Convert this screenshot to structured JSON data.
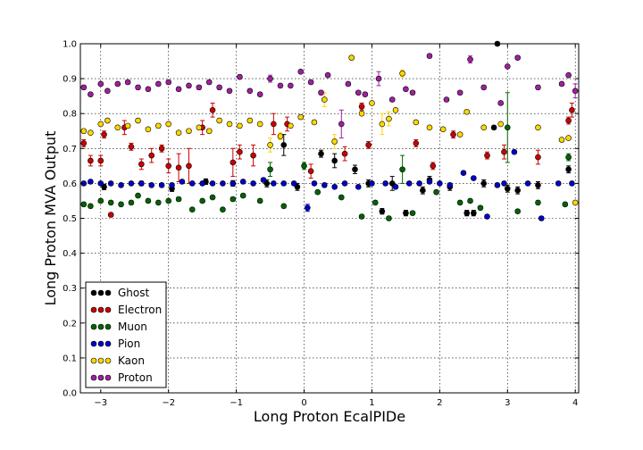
{
  "chart_data": {
    "type": "scatter",
    "title": "",
    "xlabel": "Long Proton EcalPIDe",
    "ylabel": "Long Proton MVA Output",
    "xlim": [
      -3.3,
      4.05
    ],
    "ylim": [
      0.0,
      1.0
    ],
    "xticks": [
      -3,
      -2,
      -1,
      0,
      1,
      2,
      3,
      4
    ],
    "xtick_labels": [
      "−3",
      "−2",
      "−1",
      "0",
      "1",
      "2",
      "3",
      "4"
    ],
    "yticks": [
      0.0,
      0.1,
      0.2,
      0.3,
      0.4,
      0.5,
      0.6,
      0.7,
      0.8,
      0.9,
      1.0
    ],
    "ytick_labels": [
      "0.0",
      "0.1",
      "0.2",
      "0.3",
      "0.4",
      "0.5",
      "0.6",
      "0.7",
      "0.8",
      "0.9",
      "1.0"
    ],
    "grid": true,
    "legend_position": "bottom-left",
    "colors": {
      "Ghost": "#000000",
      "Electron": "#cc0000",
      "Muon": "#006400",
      "Pion": "#0000cc",
      "Kaon": "#ffd700",
      "Proton": "#a020a0"
    },
    "series": [
      {
        "name": "Ghost",
        "points": [
          [
            -2.95,
            0.59,
            0.008
          ],
          [
            -2.4,
            0.6,
            0.006
          ],
          [
            -1.95,
            0.585,
            0.008
          ],
          [
            -1.45,
            0.605,
            0.008
          ],
          [
            -1.05,
            0.6,
            0.008
          ],
          [
            -0.55,
            0.6,
            0.01
          ],
          [
            -0.3,
            0.71,
            0.03
          ],
          [
            -0.1,
            0.59,
            0.01
          ],
          [
            0.25,
            0.685,
            0.01
          ],
          [
            0.45,
            0.665,
            0.02
          ],
          [
            0.75,
            0.64,
            0.012
          ],
          [
            0.95,
            0.6,
            0.01
          ],
          [
            1.15,
            0.52,
            0.008
          ],
          [
            1.3,
            0.6,
            0.02
          ],
          [
            1.5,
            0.515,
            0.008
          ],
          [
            1.75,
            0.58,
            0.01
          ],
          [
            1.85,
            0.61,
            0.01
          ],
          [
            2.15,
            0.59,
            0.01
          ],
          [
            2.4,
            0.515,
            0.008
          ],
          [
            2.5,
            0.515,
            0.008
          ],
          [
            2.65,
            0.6,
            0.01
          ],
          [
            2.8,
            0.76,
            0.005
          ],
          [
            3.0,
            0.585,
            0.01
          ],
          [
            3.15,
            0.58,
            0.01
          ],
          [
            3.45,
            0.595,
            0.01
          ],
          [
            3.9,
            0.64,
            0.01
          ],
          [
            2.85,
            1.0,
            0.0
          ]
        ]
      },
      {
        "name": "Electron",
        "points": [
          [
            -3.25,
            0.715,
            0.01
          ],
          [
            -3.15,
            0.665,
            0.015
          ],
          [
            -3.0,
            0.665,
            0.015
          ],
          [
            -2.95,
            0.74,
            0.01
          ],
          [
            -2.85,
            0.51,
            0.005
          ],
          [
            -2.65,
            0.76,
            0.02
          ],
          [
            -2.55,
            0.705,
            0.01
          ],
          [
            -2.4,
            0.655,
            0.015
          ],
          [
            -2.25,
            0.68,
            0.02
          ],
          [
            -2.1,
            0.7,
            0.01
          ],
          [
            -2.0,
            0.65,
            0.02
          ],
          [
            -1.85,
            0.645,
            0.04
          ],
          [
            -1.7,
            0.65,
            0.05
          ],
          [
            -1.5,
            0.76,
            0.02
          ],
          [
            -1.35,
            0.81,
            0.02
          ],
          [
            -1.05,
            0.66,
            0.04
          ],
          [
            -0.95,
            0.69,
            0.02
          ],
          [
            -0.75,
            0.68,
            0.03
          ],
          [
            -0.45,
            0.77,
            0.03
          ],
          [
            -0.25,
            0.77,
            0.02
          ],
          [
            0.1,
            0.635,
            0.02
          ],
          [
            0.6,
            0.685,
            0.02
          ],
          [
            0.85,
            0.82,
            0.01
          ],
          [
            0.95,
            0.71,
            0.01
          ],
          [
            1.65,
            0.715,
            0.01
          ],
          [
            1.9,
            0.65,
            0.01
          ],
          [
            2.2,
            0.74,
            0.01
          ],
          [
            2.7,
            0.68,
            0.01
          ],
          [
            2.95,
            0.69,
            0.02
          ],
          [
            3.45,
            0.675,
            0.02
          ],
          [
            3.9,
            0.78,
            0.01
          ],
          [
            3.95,
            0.81,
            0.02
          ]
        ]
      },
      {
        "name": "Muon",
        "points": [
          [
            -3.25,
            0.54,
            0.005
          ],
          [
            -3.15,
            0.535,
            0.005
          ],
          [
            -3.0,
            0.55,
            0.005
          ],
          [
            -2.85,
            0.545,
            0.005
          ],
          [
            -2.7,
            0.54,
            0.005
          ],
          [
            -2.55,
            0.545,
            0.005
          ],
          [
            -2.45,
            0.565,
            0.005
          ],
          [
            -2.3,
            0.55,
            0.005
          ],
          [
            -2.15,
            0.545,
            0.005
          ],
          [
            -2.0,
            0.55,
            0.005
          ],
          [
            -1.85,
            0.555,
            0.005
          ],
          [
            -1.65,
            0.525,
            0.005
          ],
          [
            -1.5,
            0.55,
            0.005
          ],
          [
            -1.35,
            0.56,
            0.005
          ],
          [
            -1.2,
            0.525,
            0.005
          ],
          [
            -1.05,
            0.555,
            0.005
          ],
          [
            -0.9,
            0.565,
            0.005
          ],
          [
            -0.65,
            0.55,
            0.005
          ],
          [
            -0.5,
            0.64,
            0.02
          ],
          [
            -0.3,
            0.535,
            0.005
          ],
          [
            0.0,
            0.65,
            0.01
          ],
          [
            0.2,
            0.575,
            0.005
          ],
          [
            0.55,
            0.56,
            0.005
          ],
          [
            0.85,
            0.505,
            0.005
          ],
          [
            1.05,
            0.545,
            0.005
          ],
          [
            1.25,
            0.5,
            0.005
          ],
          [
            1.45,
            0.64,
            0.04
          ],
          [
            1.6,
            0.515,
            0.005
          ],
          [
            1.95,
            0.575,
            0.005
          ],
          [
            2.3,
            0.545,
            0.005
          ],
          [
            2.45,
            0.55,
            0.005
          ],
          [
            2.6,
            0.53,
            0.005
          ],
          [
            3.0,
            0.76,
            0.1
          ],
          [
            3.15,
            0.52,
            0.005
          ],
          [
            3.45,
            0.545,
            0.005
          ],
          [
            3.85,
            0.54,
            0.005
          ],
          [
            3.9,
            0.675,
            0.01
          ]
        ]
      },
      {
        "name": "Pion",
        "points": [
          [
            -3.25,
            0.6,
            0.005
          ],
          [
            -3.15,
            0.605,
            0.005
          ],
          [
            -3.0,
            0.6,
            0.005
          ],
          [
            -2.85,
            0.6,
            0.005
          ],
          [
            -2.7,
            0.595,
            0.005
          ],
          [
            -2.55,
            0.6,
            0.005
          ],
          [
            -2.4,
            0.6,
            0.005
          ],
          [
            -2.25,
            0.595,
            0.005
          ],
          [
            -2.1,
            0.595,
            0.005
          ],
          [
            -1.95,
            0.595,
            0.005
          ],
          [
            -1.8,
            0.605,
            0.005
          ],
          [
            -1.65,
            0.6,
            0.005
          ],
          [
            -1.5,
            0.6,
            0.005
          ],
          [
            -1.35,
            0.6,
            0.005
          ],
          [
            -1.2,
            0.6,
            0.005
          ],
          [
            -1.05,
            0.6,
            0.005
          ],
          [
            -0.9,
            0.605,
            0.005
          ],
          [
            -0.75,
            0.6,
            0.005
          ],
          [
            -0.6,
            0.61,
            0.005
          ],
          [
            -0.45,
            0.6,
            0.005
          ],
          [
            -0.3,
            0.6,
            0.005
          ],
          [
            -0.15,
            0.6,
            0.005
          ],
          [
            0.05,
            0.53,
            0.01
          ],
          [
            0.15,
            0.6,
            0.005
          ],
          [
            0.3,
            0.595,
            0.005
          ],
          [
            0.45,
            0.59,
            0.005
          ],
          [
            0.6,
            0.6,
            0.005
          ],
          [
            0.8,
            0.59,
            0.005
          ],
          [
            1.0,
            0.6,
            0.005
          ],
          [
            1.2,
            0.6,
            0.005
          ],
          [
            1.35,
            0.59,
            0.005
          ],
          [
            1.55,
            0.6,
            0.005
          ],
          [
            1.7,
            0.6,
            0.005
          ],
          [
            1.85,
            0.605,
            0.005
          ],
          [
            2.0,
            0.6,
            0.005
          ],
          [
            2.15,
            0.595,
            0.005
          ],
          [
            2.35,
            0.63,
            0.005
          ],
          [
            2.5,
            0.615,
            0.005
          ],
          [
            2.7,
            0.505,
            0.005
          ],
          [
            2.85,
            0.595,
            0.005
          ],
          [
            2.95,
            0.6,
            0.005
          ],
          [
            3.1,
            0.69,
            0.005
          ],
          [
            3.3,
            0.6,
            0.005
          ],
          [
            3.5,
            0.5,
            0.005
          ],
          [
            3.75,
            0.6,
            0.005
          ],
          [
            3.95,
            0.6,
            0.005
          ]
        ]
      },
      {
        "name": "Kaon",
        "points": [
          [
            -3.25,
            0.75,
            0.005
          ],
          [
            -3.15,
            0.745,
            0.005
          ],
          [
            -3.0,
            0.77,
            0.005
          ],
          [
            -2.9,
            0.78,
            0.005
          ],
          [
            -2.75,
            0.76,
            0.005
          ],
          [
            -2.6,
            0.765,
            0.005
          ],
          [
            -2.45,
            0.78,
            0.005
          ],
          [
            -2.3,
            0.755,
            0.005
          ],
          [
            -2.15,
            0.765,
            0.005
          ],
          [
            -2.0,
            0.77,
            0.005
          ],
          [
            -1.85,
            0.745,
            0.005
          ],
          [
            -1.7,
            0.75,
            0.005
          ],
          [
            -1.55,
            0.76,
            0.005
          ],
          [
            -1.4,
            0.75,
            0.005
          ],
          [
            -1.25,
            0.78,
            0.005
          ],
          [
            -1.1,
            0.77,
            0.005
          ],
          [
            -0.95,
            0.765,
            0.005
          ],
          [
            -0.8,
            0.78,
            0.005
          ],
          [
            -0.65,
            0.77,
            0.005
          ],
          [
            -0.5,
            0.71,
            0.02
          ],
          [
            -0.35,
            0.735,
            0.01
          ],
          [
            -0.2,
            0.765,
            0.005
          ],
          [
            -0.05,
            0.79,
            0.005
          ],
          [
            0.15,
            0.775,
            0.005
          ],
          [
            0.3,
            0.84,
            0.02
          ],
          [
            0.45,
            0.72,
            0.02
          ],
          [
            0.7,
            0.96,
            0.005
          ],
          [
            0.85,
            0.8,
            0.005
          ],
          [
            1.0,
            0.83,
            0.005
          ],
          [
            1.15,
            0.77,
            0.03
          ],
          [
            1.25,
            0.785,
            0.02
          ],
          [
            1.35,
            0.81,
            0.005
          ],
          [
            1.45,
            0.915,
            0.01
          ],
          [
            1.65,
            0.775,
            0.005
          ],
          [
            1.85,
            0.76,
            0.005
          ],
          [
            2.05,
            0.755,
            0.005
          ],
          [
            2.3,
            0.74,
            0.005
          ],
          [
            2.4,
            0.805,
            0.005
          ],
          [
            2.65,
            0.76,
            0.005
          ],
          [
            2.9,
            0.77,
            0.005
          ],
          [
            3.45,
            0.76,
            0.005
          ],
          [
            3.8,
            0.725,
            0.005
          ],
          [
            3.9,
            0.73,
            0.005
          ],
          [
            4.0,
            0.545,
            0.005
          ]
        ]
      },
      {
        "name": "Proton",
        "points": [
          [
            -3.25,
            0.875,
            0.005
          ],
          [
            -3.15,
            0.855,
            0.005
          ],
          [
            -3.0,
            0.885,
            0.005
          ],
          [
            -2.9,
            0.865,
            0.005
          ],
          [
            -2.75,
            0.885,
            0.005
          ],
          [
            -2.6,
            0.89,
            0.005
          ],
          [
            -2.45,
            0.875,
            0.005
          ],
          [
            -2.3,
            0.87,
            0.005
          ],
          [
            -2.15,
            0.885,
            0.005
          ],
          [
            -2.0,
            0.89,
            0.005
          ],
          [
            -1.85,
            0.87,
            0.005
          ],
          [
            -1.7,
            0.88,
            0.005
          ],
          [
            -1.55,
            0.875,
            0.005
          ],
          [
            -1.4,
            0.89,
            0.005
          ],
          [
            -1.25,
            0.875,
            0.005
          ],
          [
            -1.1,
            0.865,
            0.005
          ],
          [
            -0.95,
            0.905,
            0.005
          ],
          [
            -0.8,
            0.865,
            0.005
          ],
          [
            -0.65,
            0.855,
            0.005
          ],
          [
            -0.5,
            0.9,
            0.01
          ],
          [
            -0.35,
            0.88,
            0.005
          ],
          [
            -0.2,
            0.88,
            0.005
          ],
          [
            -0.05,
            0.92,
            0.005
          ],
          [
            0.1,
            0.89,
            0.005
          ],
          [
            0.25,
            0.86,
            0.005
          ],
          [
            0.35,
            0.91,
            0.005
          ],
          [
            0.55,
            0.77,
            0.04
          ],
          [
            0.65,
            0.885,
            0.005
          ],
          [
            0.8,
            0.86,
            0.005
          ],
          [
            0.9,
            0.855,
            0.005
          ],
          [
            1.1,
            0.9,
            0.02
          ],
          [
            1.3,
            0.84,
            0.005
          ],
          [
            1.5,
            0.87,
            0.005
          ],
          [
            1.6,
            0.86,
            0.005
          ],
          [
            1.85,
            0.965,
            0.005
          ],
          [
            2.1,
            0.84,
            0.005
          ],
          [
            2.3,
            0.86,
            0.005
          ],
          [
            2.45,
            0.955,
            0.01
          ],
          [
            2.65,
            0.875,
            0.005
          ],
          [
            2.9,
            0.83,
            0.005
          ],
          [
            3.0,
            0.935,
            0.005
          ],
          [
            3.15,
            0.96,
            0.005
          ],
          [
            3.45,
            0.875,
            0.005
          ],
          [
            3.8,
            0.885,
            0.005
          ],
          [
            3.9,
            0.91,
            0.005
          ],
          [
            4.0,
            0.865,
            0.02
          ]
        ]
      }
    ]
  }
}
